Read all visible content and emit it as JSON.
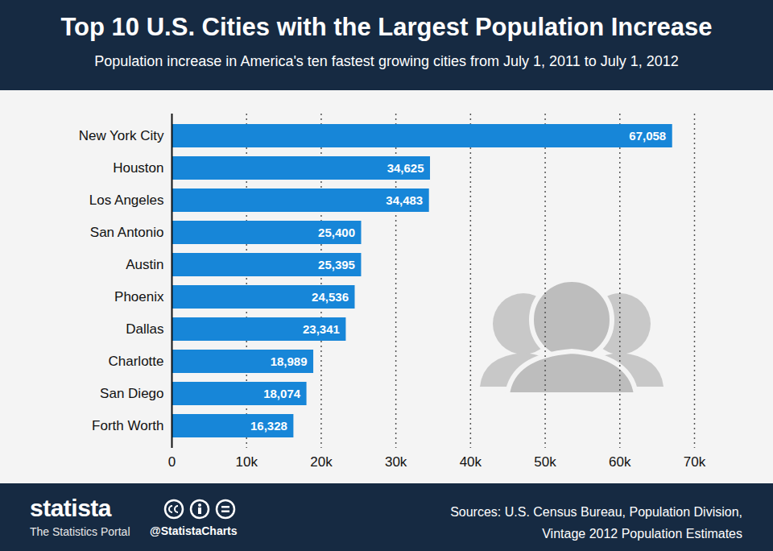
{
  "chart_data": {
    "type": "bar",
    "orientation": "horizontal",
    "title": "Top 10 U.S. Cities with the Largest Population Increase",
    "subtitle": "Population increase in America's ten fastest growing cities from July 1, 2011 to July 1, 2012",
    "categories": [
      "New York City",
      "Houston",
      "Los Angeles",
      "San Antonio",
      "Austin",
      "Phoenix",
      "Dallas",
      "Charlotte",
      "San Diego",
      "Forth Worth"
    ],
    "values": [
      67058,
      34625,
      34483,
      25400,
      25395,
      24536,
      23341,
      18989,
      18074,
      16328
    ],
    "value_labels": [
      "67,058",
      "34,625",
      "34,483",
      "25,400",
      "25,395",
      "24,536",
      "23,341",
      "18,989",
      "18,074",
      "16,328"
    ],
    "data_labels": true,
    "color": "#1786d8",
    "xlim": [
      0,
      70000
    ],
    "xticks": [
      0,
      {
        "value": 10000,
        "label": "10k"
      },
      {
        "value": 20000,
        "label": "20k"
      },
      {
        "value": 30000,
        "label": "30k"
      },
      {
        "value": 40000,
        "label": "40k"
      },
      {
        "value": 50000,
        "label": "50k"
      },
      {
        "value": 60000,
        "label": "60k"
      },
      {
        "value": 70000,
        "label": "70k"
      }
    ],
    "grid": true,
    "brand": "statista",
    "brand_tagline": "The Statistics Portal",
    "handle": "@StatistaCharts",
    "source": [
      "Sources: U.S. Census Bureau, Population Division,",
      "Vintage 2012 Population Estimates"
    ]
  }
}
